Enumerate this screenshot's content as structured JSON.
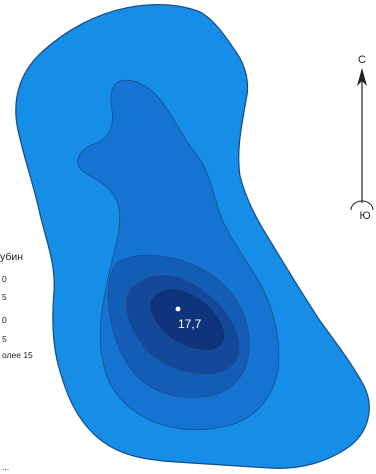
{
  "map": {
    "max_depth_label": "17,7",
    "colors": {
      "zone1": "#168ee8",
      "zone2": "#1573d2",
      "zone3": "#145db6",
      "zone4": "#13489a",
      "zone5": "#10347c",
      "outline": "#1a4f8a",
      "point": "#ffffff"
    }
  },
  "legend": {
    "title": "убин",
    "items": [
      "0",
      "5",
      "0",
      "5",
      "олее 15"
    ]
  },
  "compass": {
    "north_label": "С",
    "south_label": "Ю",
    "icon": "north-arrow-icon"
  },
  "bottom_note": "..."
}
